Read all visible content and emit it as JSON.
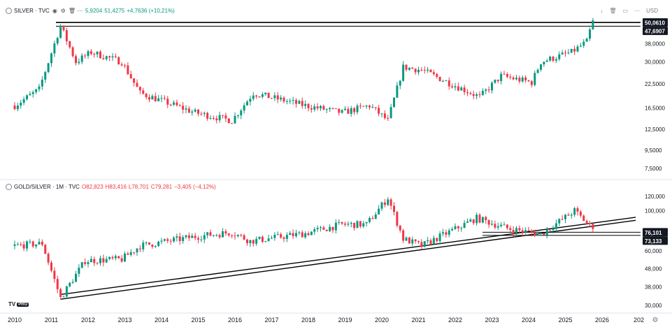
{
  "top_legend": {
    "symbol": "SILVER · TVC",
    "last": "5,9204",
    "value": "51,4275",
    "change": "+4,7636 (+10,21%)"
  },
  "bottom_legend": {
    "symbol": "GOLD/SILVER · 1M · TVC",
    "open": "O82,823",
    "high": "H83,416",
    "low": "L78,701",
    "close": "C79,281",
    "change": "−3,405 (−4,12%)"
  },
  "toolbar": {
    "currency": "USD"
  },
  "logo": {
    "text": "TV",
    "badge": "PRO"
  },
  "colors": {
    "up": "#089981",
    "down": "#f23645",
    "line": "#000000",
    "grid": "#f0f3fa"
  },
  "chart_data": [
    {
      "type": "candlestick",
      "symbol": "SILVER · TVC",
      "timeframe": "1M",
      "y_scale": "log",
      "y_ticks": [
        "50,0610",
        "47,6907",
        "38,0000",
        "30,0000",
        "22,5000",
        "16,5000",
        "12,5000",
        "9,5000",
        "7,5000"
      ],
      "y_tick_values": [
        50.061,
        47.6907,
        38,
        30,
        22.5,
        16.5,
        12.5,
        9.5,
        7.5
      ],
      "ylim": [
        6.8,
        52
      ],
      "highlighted_prices": [
        50.061,
        47.6907
      ],
      "horizontal_lines": [
        50.061,
        47.6907
      ],
      "approx_close_path": [
        {
          "date": "2010-01",
          "close": 17.0
        },
        {
          "date": "2010-09",
          "close": 21.0
        },
        {
          "date": "2011-04",
          "close": 48.0
        },
        {
          "date": "2011-09",
          "close": 30.0
        },
        {
          "date": "2012-02",
          "close": 34.0
        },
        {
          "date": "2012-12",
          "close": 30.0
        },
        {
          "date": "2013-06",
          "close": 20.0
        },
        {
          "date": "2014-12",
          "close": 15.5
        },
        {
          "date": "2015-12",
          "close": 14.0
        },
        {
          "date": "2016-07",
          "close": 20.0
        },
        {
          "date": "2017-12",
          "close": 17.0
        },
        {
          "date": "2018-12",
          "close": 15.5
        },
        {
          "date": "2019-09",
          "close": 17.0
        },
        {
          "date": "2020-03",
          "close": 14.0
        },
        {
          "date": "2020-08",
          "close": 28.0
        },
        {
          "date": "2021-02",
          "close": 27.0
        },
        {
          "date": "2022-09",
          "close": 19.0
        },
        {
          "date": "2023-04",
          "close": 25.0
        },
        {
          "date": "2024-02",
          "close": 23.0
        },
        {
          "date": "2024-05",
          "close": 30.0
        },
        {
          "date": "2025-03",
          "close": 34.0
        },
        {
          "date": "2025-08",
          "close": 39.0
        },
        {
          "date": "2025-10",
          "close": 51.4
        }
      ]
    },
    {
      "type": "candlestick",
      "symbol": "GOLD/SILVER · 1M · TVC",
      "timeframe": "1M",
      "y_scale": "log",
      "y_ticks": [
        "120,000",
        "100,000",
        "76,101",
        "73,133",
        "60,000",
        "48,000",
        "38,000",
        "30,000"
      ],
      "y_tick_values": [
        120,
        100,
        76.101,
        73.133,
        60,
        48,
        38,
        30
      ],
      "ylim": [
        28.5,
        130
      ],
      "highlighted_prices": [
        76.101,
        73.133
      ],
      "horizontal_lines": [
        76.101,
        73.133
      ],
      "trendlines": [
        {
          "from": {
            "date": "2011-04",
            "value": 32.5
          },
          "to": {
            "date": "2026-12",
            "value": 88.5
          }
        },
        {
          "from": {
            "date": "2011-04",
            "value": 34.5
          },
          "to": {
            "date": "2026-12",
            "value": 92.0
          }
        }
      ],
      "approx_close_path": [
        {
          "date": "2010-01",
          "close": 64
        },
        {
          "date": "2010-10",
          "close": 66
        },
        {
          "date": "2011-04",
          "close": 33
        },
        {
          "date": "2011-12",
          "close": 53
        },
        {
          "date": "2012-12",
          "close": 54
        },
        {
          "date": "2013-06",
          "close": 64
        },
        {
          "date": "2014-12",
          "close": 72
        },
        {
          "date": "2015-12",
          "close": 76
        },
        {
          "date": "2016-06",
          "close": 68
        },
        {
          "date": "2017-12",
          "close": 75
        },
        {
          "date": "2018-12",
          "close": 84
        },
        {
          "date": "2019-08",
          "close": 84
        },
        {
          "date": "2020-03",
          "close": 118
        },
        {
          "date": "2020-08",
          "close": 70
        },
        {
          "date": "2021-02",
          "close": 64
        },
        {
          "date": "2022-08",
          "close": 91
        },
        {
          "date": "2023-06",
          "close": 80
        },
        {
          "date": "2024-05",
          "close": 74
        },
        {
          "date": "2025-04",
          "close": 100
        },
        {
          "date": "2025-10",
          "close": 79.3
        }
      ]
    }
  ],
  "x_axis": {
    "labels": [
      "2010",
      "2011",
      "2012",
      "2013",
      "2014",
      "2015",
      "2016",
      "2017",
      "2018",
      "2019",
      "2020",
      "2021",
      "2022",
      "2023",
      "2024",
      "2025",
      "2026",
      "202"
    ]
  }
}
